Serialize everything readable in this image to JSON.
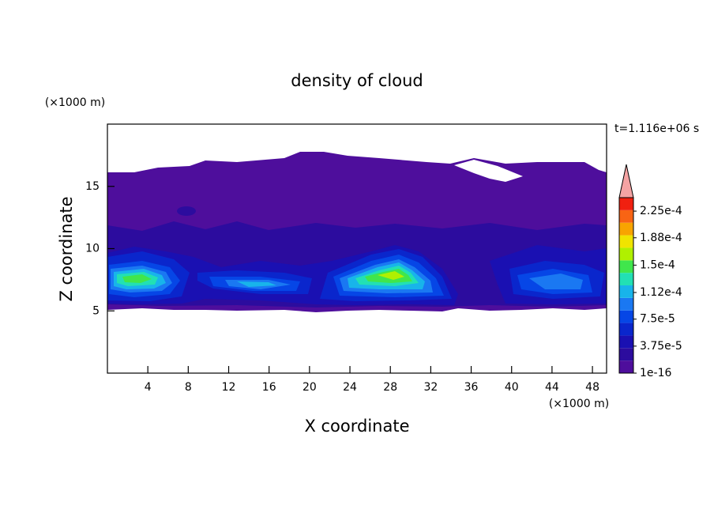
{
  "chart_data": {
    "type": "contour",
    "title": "density of cloud",
    "xlabel": "X coordinate",
    "ylabel": "Z coordinate",
    "xunit": "(×1000 m)",
    "yunit": "(×1000 m)",
    "annotation": "t=1.116e+06 s",
    "xlim": [
      0,
      49.4
    ],
    "ylim": [
      0,
      20
    ],
    "xticks": [
      4,
      8,
      12,
      16,
      20,
      24,
      28,
      32,
      36,
      40,
      44,
      48
    ],
    "yticks": [
      5,
      10,
      15
    ],
    "colorbar": {
      "clim": [
        1e-16,
        0.00024375
      ],
      "ticks": [
        {
          "value": 1e-16,
          "label": "1e-16"
        },
        {
          "value": 3.75e-05,
          "label": "3.75e-5"
        },
        {
          "value": 7.5e-05,
          "label": "7.5e-5"
        },
        {
          "value": 0.000112,
          "label": "1.12e-4"
        },
        {
          "value": 0.00015,
          "label": "1.5e-4"
        },
        {
          "value": 0.000188,
          "label": "1.88e-4"
        },
        {
          "value": 0.000225,
          "label": "2.25e-4"
        }
      ],
      "colors": [
        "#4e0e9c",
        "#2c0c9e",
        "#1a10b2",
        "#0a26cc",
        "#0646e6",
        "#1a78f2",
        "#18b4ea",
        "#22e0b4",
        "#40e64c",
        "#b0f000",
        "#f0e400",
        "#f8a400",
        "#f86414",
        "#f02010"
      ],
      "extend_color": "#f4a3a3"
    }
  }
}
